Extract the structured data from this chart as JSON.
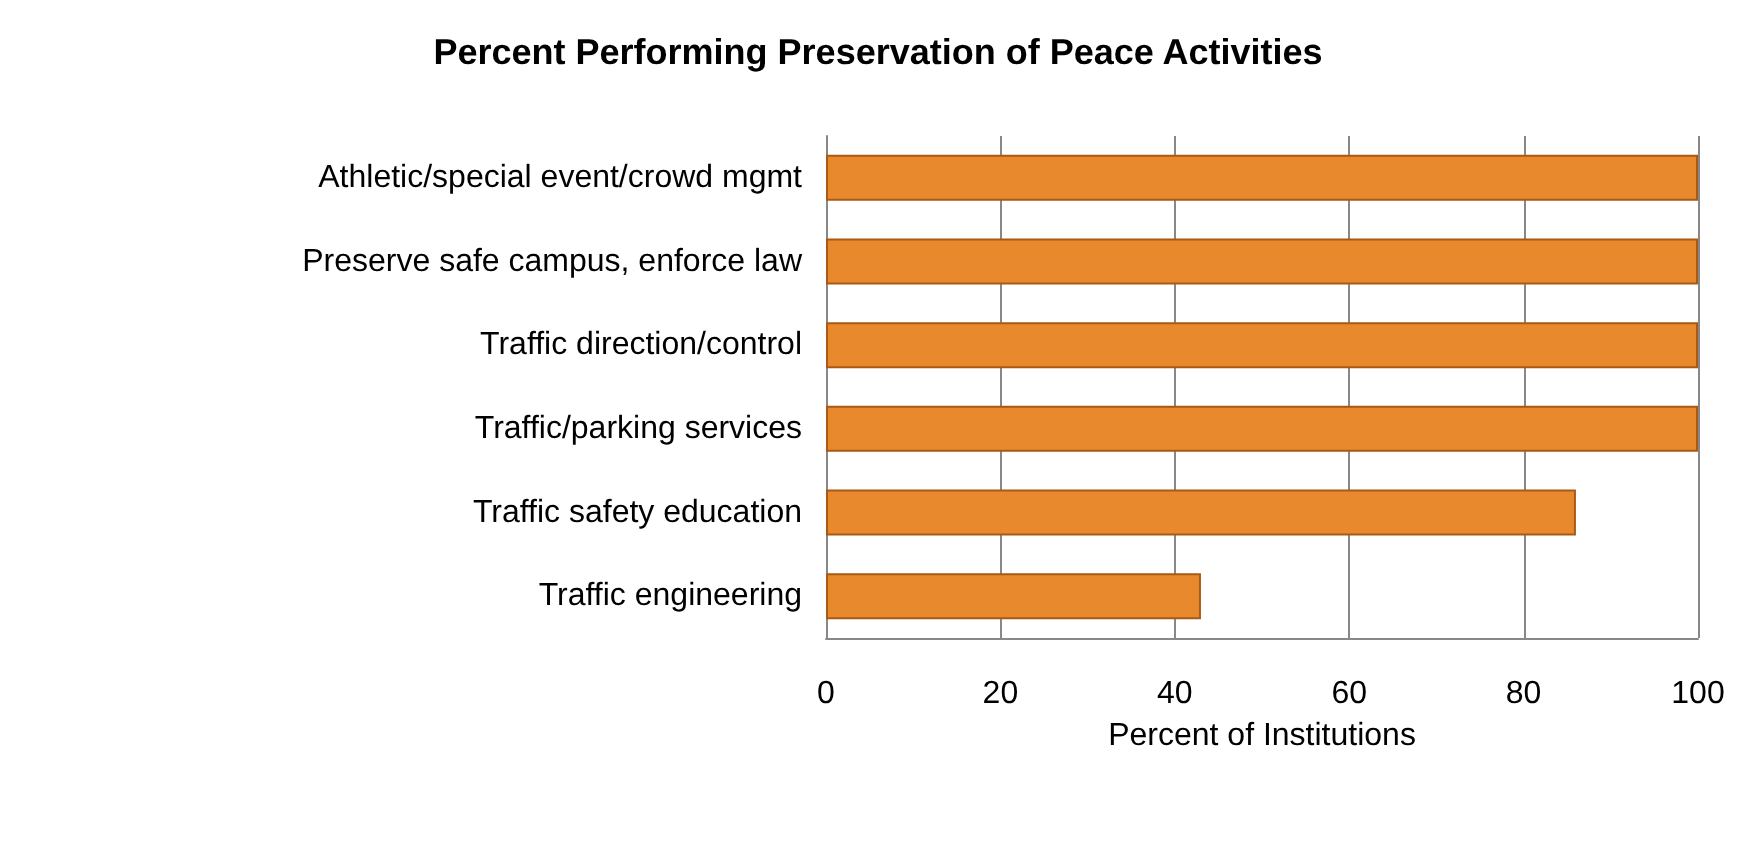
{
  "chart_data": {
    "type": "bar",
    "orientation": "horizontal",
    "title": "Percent Performing Preservation of Peace Activities",
    "xlabel": "Percent of Institutions",
    "categories": [
      "Athletic/special event/crowd mgmt",
      "Preserve safe campus, enforce law",
      "Traffic direction/control",
      "Traffic/parking services",
      "Traffic safety education",
      "Traffic engineering"
    ],
    "values": [
      100,
      100,
      100,
      100,
      86,
      43
    ],
    "color": "#e8892e",
    "xlim": [
      0,
      100
    ],
    "xticks": [
      0,
      20,
      40,
      60,
      80,
      100
    ],
    "grid": "x"
  }
}
